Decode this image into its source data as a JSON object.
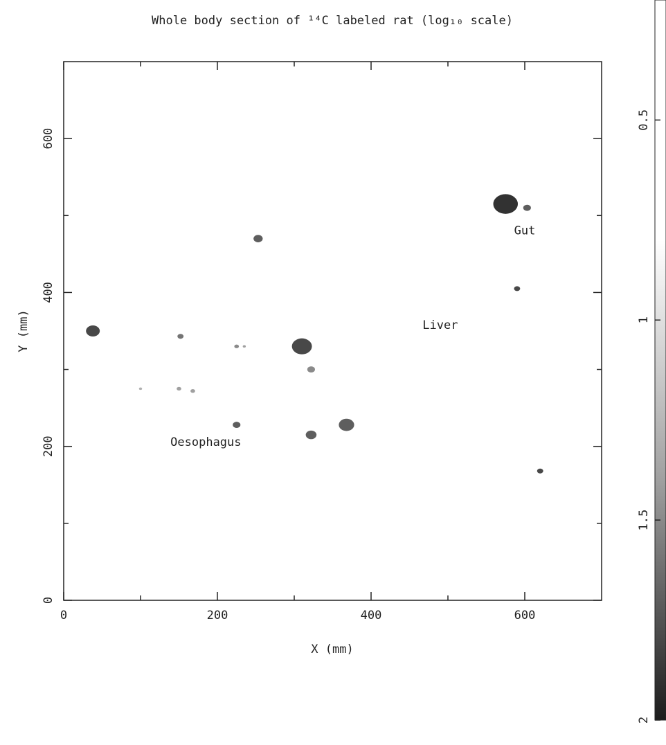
{
  "chart_data": {
    "type": "image-scatter",
    "title": "Whole body section of ¹⁴C labeled rat  (log₁₀ scale)",
    "x_label": "X (mm)",
    "y_label": "Y (mm)",
    "xlim": [
      0,
      700
    ],
    "xticks": [
      0,
      200,
      400,
      600
    ],
    "ylim": [
      0,
      700
    ],
    "yticks": [
      0,
      200,
      400,
      600
    ],
    "x": [
      38,
      253,
      152,
      225,
      235,
      310,
      322,
      100,
      150,
      168,
      225,
      322,
      368,
      575,
      603,
      590,
      620
    ],
    "y": [
      350,
      470,
      343,
      330,
      330,
      330,
      300,
      275,
      275,
      272,
      228,
      215,
      228,
      515,
      510,
      405,
      168
    ],
    "values": [
      1.8,
      1.7,
      1.6,
      1.5,
      1.4,
      1.8,
      1.5,
      1.3,
      1.4,
      1.4,
      1.7,
      1.7,
      1.7,
      1.9,
      1.7,
      1.8,
      1.8
    ],
    "sizes": [
      9,
      6,
      4,
      3,
      2,
      13,
      5,
      2,
      3,
      3,
      5,
      7,
      10,
      16,
      5,
      4,
      4
    ],
    "annotations": [
      {
        "text": "Gut",
        "x": 600,
        "y": 480
      },
      {
        "text": "Liver",
        "x": 490,
        "y": 357
      },
      {
        "text": "Oesophagus",
        "x": 185,
        "y": 205
      }
    ],
    "clim": [
      0.2,
      2
    ],
    "cticks": [
      0.5,
      1,
      1.5,
      2
    ],
    "colors": [
      "#ffffff",
      "#ffffff",
      "#a0a0a0",
      "#1c1c1c"
    ]
  }
}
